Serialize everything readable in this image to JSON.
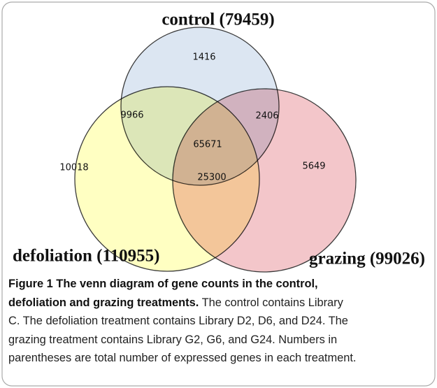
{
  "sets": [
    {
      "label": "control (79459)"
    },
    {
      "label": "defoliation (110955)"
    },
    {
      "label": "grazing (99026)"
    }
  ],
  "regions": {
    "control_only": "1416",
    "control_defoliation": "9966",
    "control_grazing": "2406",
    "all_three": "65671",
    "defoliation_only": "10018",
    "defoliation_grazing": "25300",
    "grazing_only": "5649"
  },
  "caption": {
    "bold_lines": [
      "Figure 1 The venn diagram of gene counts in the control,",
      "defoliation and grazing treatments."
    ],
    "regular_lines": [
      "The control contains Library",
      "C. The defoliation treatment contains Library D2, D6, and D24. The",
      "grazing treatment contains Library G2, G6, and G24. Numbers in",
      "parentheses are total number of expressed genes in each treatment."
    ]
  }
}
